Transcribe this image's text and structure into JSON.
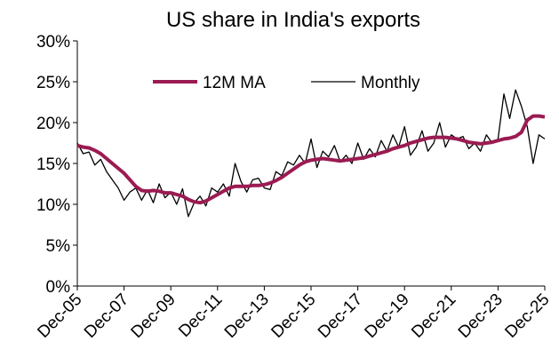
{
  "chart_data": {
    "type": "line",
    "title": "US share in India's exports",
    "categories": [
      "Dec-05",
      null,
      null,
      null,
      null,
      null,
      null,
      null,
      "Dec-07",
      null,
      null,
      null,
      null,
      null,
      null,
      null,
      "Dec-09",
      null,
      null,
      null,
      null,
      null,
      null,
      null,
      "Dec-11",
      null,
      null,
      null,
      null,
      null,
      null,
      null,
      "Dec-13",
      null,
      null,
      null,
      null,
      null,
      null,
      null,
      "Dec-15",
      null,
      null,
      null,
      null,
      null,
      null,
      null,
      "Dec-17",
      null,
      null,
      null,
      null,
      null,
      null,
      null,
      "Dec-19",
      null,
      null,
      null,
      null,
      null,
      null,
      null,
      "Dec-21",
      null,
      null,
      null,
      null,
      null,
      null,
      null,
      "Dec-23",
      null,
      null,
      null,
      null,
      null,
      null,
      null,
      "Dec-25"
    ],
    "series": [
      {
        "name": "12M MA",
        "color": "#9b1b52",
        "values": [
          17.2,
          17.0,
          16.9,
          16.6,
          16.2,
          15.6,
          15.0,
          14.4,
          13.8,
          13.0,
          12.2,
          11.7,
          11.6,
          11.7,
          11.6,
          11.4,
          11.4,
          11.2,
          11.0,
          10.6,
          10.3,
          10.2,
          10.4,
          10.8,
          11.2,
          11.6,
          12.0,
          12.2,
          12.2,
          12.2,
          12.3,
          12.3,
          12.4,
          12.6,
          12.9,
          13.3,
          13.8,
          14.3,
          14.8,
          15.2,
          15.4,
          15.5,
          15.6,
          15.5,
          15.4,
          15.3,
          15.4,
          15.5,
          15.6,
          15.7,
          15.9,
          16.1,
          16.3,
          16.5,
          16.8,
          17.0,
          17.2,
          17.5,
          17.7,
          17.9,
          18.1,
          18.2,
          18.2,
          18.2,
          18.1,
          18.0,
          17.8,
          17.6,
          17.5,
          17.4,
          17.5,
          17.6,
          17.8,
          18.0,
          18.1,
          18.3,
          18.8,
          20.3,
          20.8,
          20.8,
          20.7
        ]
      },
      {
        "name": "Monthly",
        "color": "#000000",
        "values": [
          17.5,
          16.2,
          16.4,
          14.8,
          15.5,
          14.0,
          13.0,
          12.0,
          10.5,
          11.5,
          12.0,
          10.5,
          11.8,
          10.2,
          12.5,
          10.8,
          11.5,
          10.0,
          11.9,
          8.5,
          10.2,
          11.0,
          9.8,
          12.0,
          11.5,
          12.5,
          11.0,
          15.0,
          12.8,
          11.5,
          13.0,
          13.2,
          12.0,
          11.8,
          14.0,
          13.5,
          15.2,
          14.8,
          16.0,
          15.0,
          18.0,
          14.5,
          16.5,
          15.8,
          17.2,
          15.2,
          16.0,
          15.0,
          17.5,
          15.5,
          16.8,
          15.8,
          17.8,
          16.5,
          18.5,
          17.0,
          19.5,
          16.0,
          17.0,
          19.0,
          16.5,
          17.5,
          20.0,
          17.0,
          18.5,
          18.0,
          18.3,
          16.8,
          17.5,
          16.5,
          18.5,
          17.5,
          18.0,
          23.5,
          20.5,
          24.0,
          22.0,
          19.5,
          15.0,
          18.5,
          18.0
        ]
      }
    ],
    "ylim": [
      0,
      30
    ],
    "yticks": [
      {
        "value": 0,
        "label": "0%"
      },
      {
        "value": 5,
        "label": "5%"
      },
      {
        "value": 10,
        "label": "10%"
      },
      {
        "value": 15,
        "label": "15%"
      },
      {
        "value": 20,
        "label": "20%"
      },
      {
        "value": 25,
        "label": "25%"
      },
      {
        "value": 30,
        "label": "30%"
      }
    ],
    "grid": false,
    "legend": "top"
  }
}
